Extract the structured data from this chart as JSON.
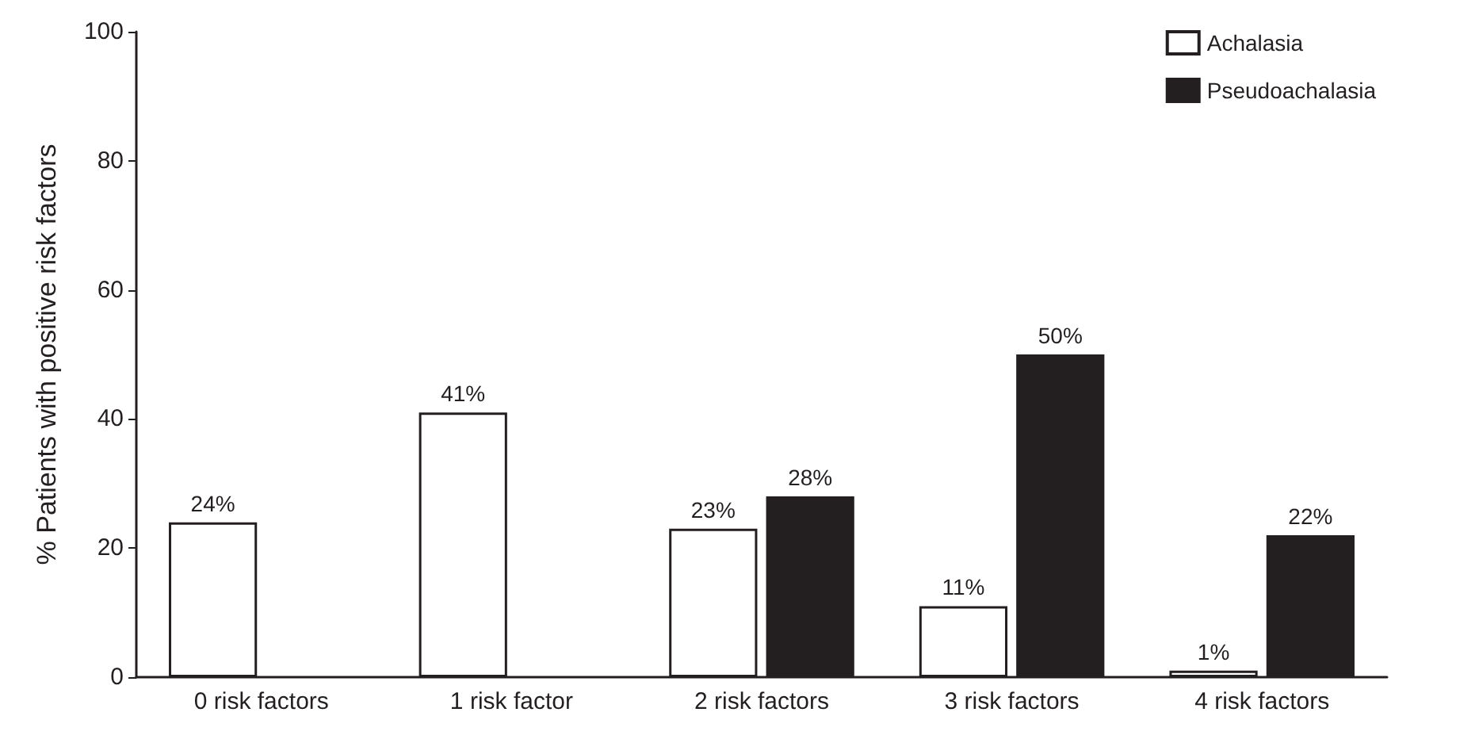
{
  "chart_data": {
    "type": "bar",
    "ylabel": "% Patients with positive risk factors",
    "categories": [
      "0 risk factors",
      "1 risk factor",
      "2 risk factors",
      "3 risk factors",
      "4 risk factors"
    ],
    "series": [
      {
        "name": "Achalasia",
        "color": "#ffffff",
        "values": [
          24,
          41,
          23,
          11,
          1
        ],
        "value_labels": [
          "24%",
          "41%",
          "23%",
          "11%",
          "1%"
        ]
      },
      {
        "name": "Pseudoachalasia",
        "color": "#231f20",
        "values": [
          null,
          null,
          28,
          50,
          22
        ],
        "value_labels": [
          null,
          null,
          "28%",
          "50%",
          "22%"
        ]
      }
    ],
    "ylim": [
      0,
      100
    ],
    "yticks": [
      0,
      20,
      40,
      60,
      80,
      100
    ],
    "grid": false,
    "legend": "top right"
  }
}
